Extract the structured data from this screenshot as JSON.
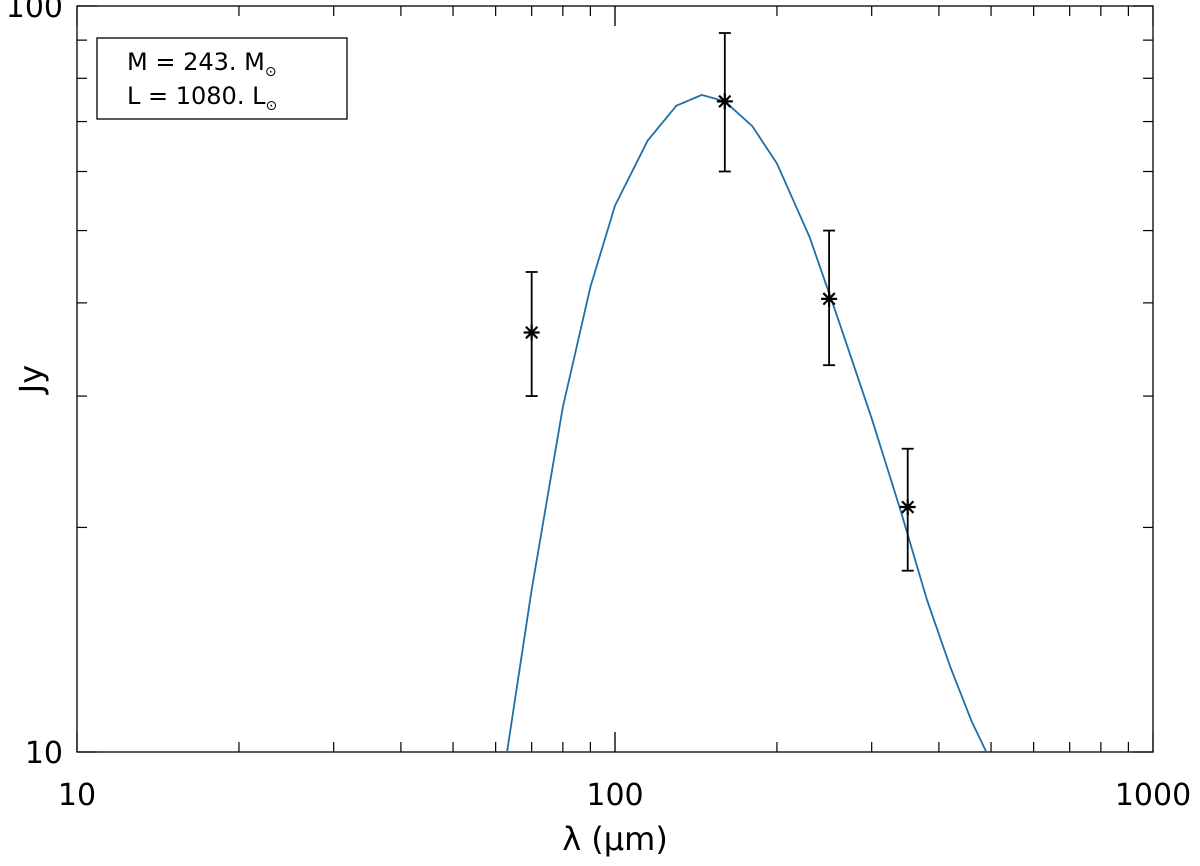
{
  "chart_data": {
    "type": "scatter",
    "title": "",
    "xlabel": "λ (µm)",
    "ylabel": "Jy",
    "x_scale": "log",
    "y_scale": "log",
    "xlim": [
      10,
      1000
    ],
    "ylim": [
      10,
      100
    ],
    "x_tick_labels": [
      "10",
      "100",
      "1000"
    ],
    "y_tick_labels": [
      "10",
      "100"
    ],
    "grid": false,
    "legend": {
      "placement": "top-left",
      "lines": [
        {
          "name": "M",
          "value": "243.",
          "unit": "M",
          "sub": "⊙"
        },
        {
          "name": "L",
          "value": "1080.",
          "unit": "L",
          "sub": "⊙"
        }
      ]
    },
    "points": {
      "marker": "asterisk",
      "color": "#000000",
      "x": [
        70,
        160,
        250,
        350
      ],
      "y": [
        36.5,
        74.5,
        40.5,
        21.3
      ],
      "yerr_low": [
        30.0,
        60.0,
        33.0,
        17.5
      ],
      "yerr_high": [
        44.0,
        92.0,
        50.0,
        25.5
      ]
    },
    "fit": {
      "color": "#1f6fa8",
      "x": [
        63,
        70,
        80,
        90,
        100,
        115,
        130,
        145,
        160,
        180,
        200,
        230,
        260,
        300,
        340,
        380,
        420,
        460,
        490
      ],
      "y": [
        10.0,
        16.5,
        29.0,
        42.0,
        54.0,
        66.0,
        73.5,
        76.0,
        74.5,
        69.0,
        61.5,
        49.0,
        38.0,
        28.0,
        21.0,
        16.0,
        13.0,
        11.0,
        10.0
      ]
    }
  }
}
